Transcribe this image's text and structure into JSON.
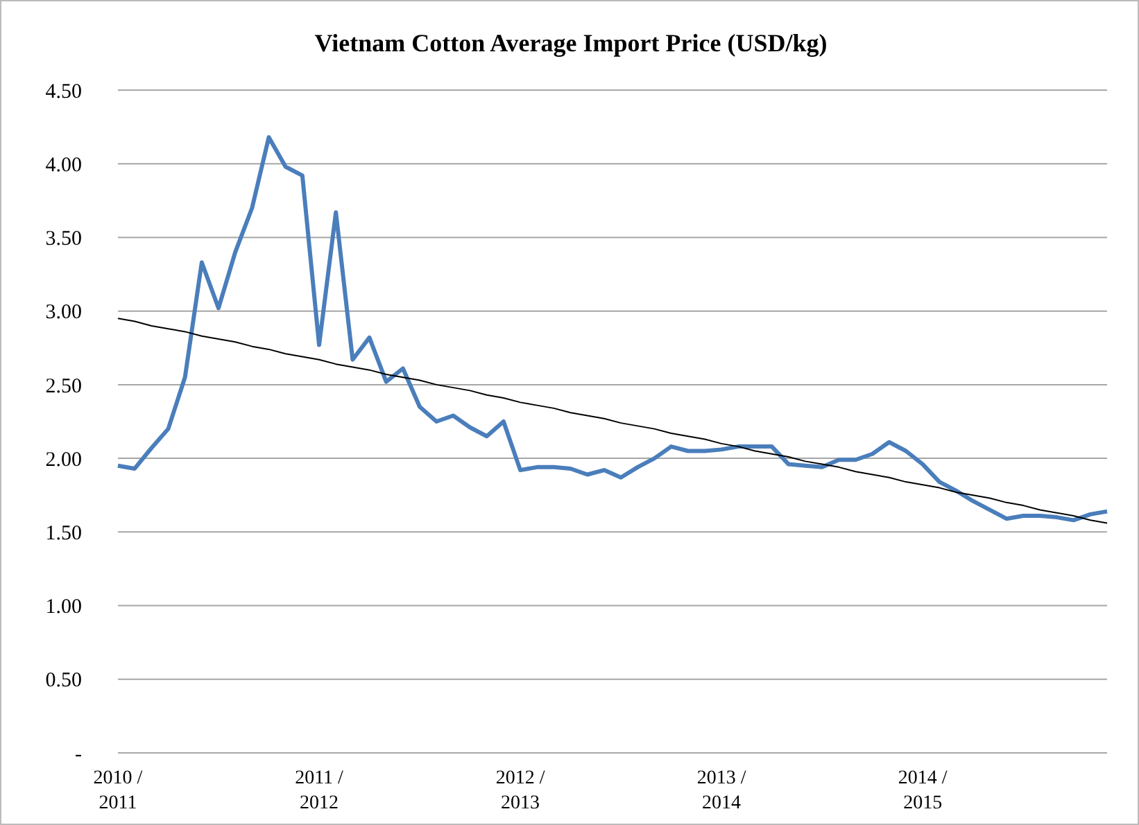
{
  "chart_data": {
    "type": "line",
    "title": "Vietnam Cotton Average Import Price (USD/kg)",
    "categories": [
      "2010 /\n2011",
      null,
      null,
      null,
      null,
      null,
      null,
      null,
      null,
      null,
      null,
      null,
      "2011 /\n2012",
      null,
      null,
      null,
      null,
      null,
      null,
      null,
      null,
      null,
      null,
      null,
      "2012 /\n2013",
      null,
      null,
      null,
      null,
      null,
      null,
      null,
      null,
      null,
      null,
      null,
      "2013 /\n2014",
      null,
      null,
      null,
      null,
      null,
      null,
      null,
      null,
      null,
      null,
      null,
      "2014 /\n2015",
      null,
      null,
      null,
      null,
      null,
      null,
      null,
      null,
      null,
      null,
      null
    ],
    "series": [
      {
        "color": "#4a7ebb",
        "values": [
          1.95,
          1.93,
          2.07,
          2.2,
          2.55,
          3.33,
          3.02,
          3.4,
          3.7,
          4.18,
          3.98,
          3.92,
          2.77,
          3.67,
          2.67,
          2.82,
          2.52,
          2.61,
          2.35,
          2.25,
          2.29,
          2.21,
          2.15,
          2.25,
          1.92,
          1.94,
          1.94,
          1.93,
          1.89,
          1.92,
          1.87,
          1.94,
          2.0,
          2.08,
          2.05,
          2.05,
          2.06,
          2.08,
          2.08,
          2.08,
          1.96,
          1.95,
          1.94,
          1.99,
          1.99,
          2.03,
          2.11,
          2.05,
          1.96,
          1.84,
          1.78,
          1.71,
          1.65,
          1.59,
          1.61,
          1.61,
          1.6,
          1.58,
          1.62,
          1.64
        ]
      },
      {
        "type": "line",
        "color": "#000000",
        "values": [
          2.95,
          2.93,
          2.9,
          2.88,
          2.86,
          2.83,
          2.81,
          2.79,
          2.76,
          2.74,
          2.71,
          2.69,
          2.67,
          2.64,
          2.62,
          2.6,
          2.57,
          2.55,
          2.53,
          2.5,
          2.48,
          2.46,
          2.43,
          2.41,
          2.38,
          2.36,
          2.34,
          2.31,
          2.29,
          2.27,
          2.24,
          2.22,
          2.2,
          2.17,
          2.15,
          2.13,
          2.1,
          2.08,
          2.05,
          2.03,
          2.01,
          1.98,
          1.96,
          1.94,
          1.91,
          1.89,
          1.87,
          1.84,
          1.82,
          1.8,
          1.77,
          1.75,
          1.73,
          1.7,
          1.68,
          1.65,
          1.63,
          1.61,
          1.58,
          1.56
        ]
      }
    ],
    "ylim": [
      0,
      4.5
    ],
    "yticks": [
      {
        "value": 0,
        "label": "-"
      },
      {
        "value": 0.5,
        "label": "0.50"
      },
      {
        "value": 1,
        "label": "1.00"
      },
      {
        "value": 1.5,
        "label": "1.50"
      },
      {
        "value": 2,
        "label": "2.00"
      },
      {
        "value": 2.5,
        "label": "2.50"
      },
      {
        "value": 3,
        "label": "3.00"
      },
      {
        "value": 3.5,
        "label": "3.50"
      },
      {
        "value": 4,
        "label": "4.00"
      },
      {
        "value": 4.5,
        "label": "4.50"
      }
    ],
    "grid": "y",
    "legend": false,
    "marker": "none",
    "line_style": "solid"
  }
}
